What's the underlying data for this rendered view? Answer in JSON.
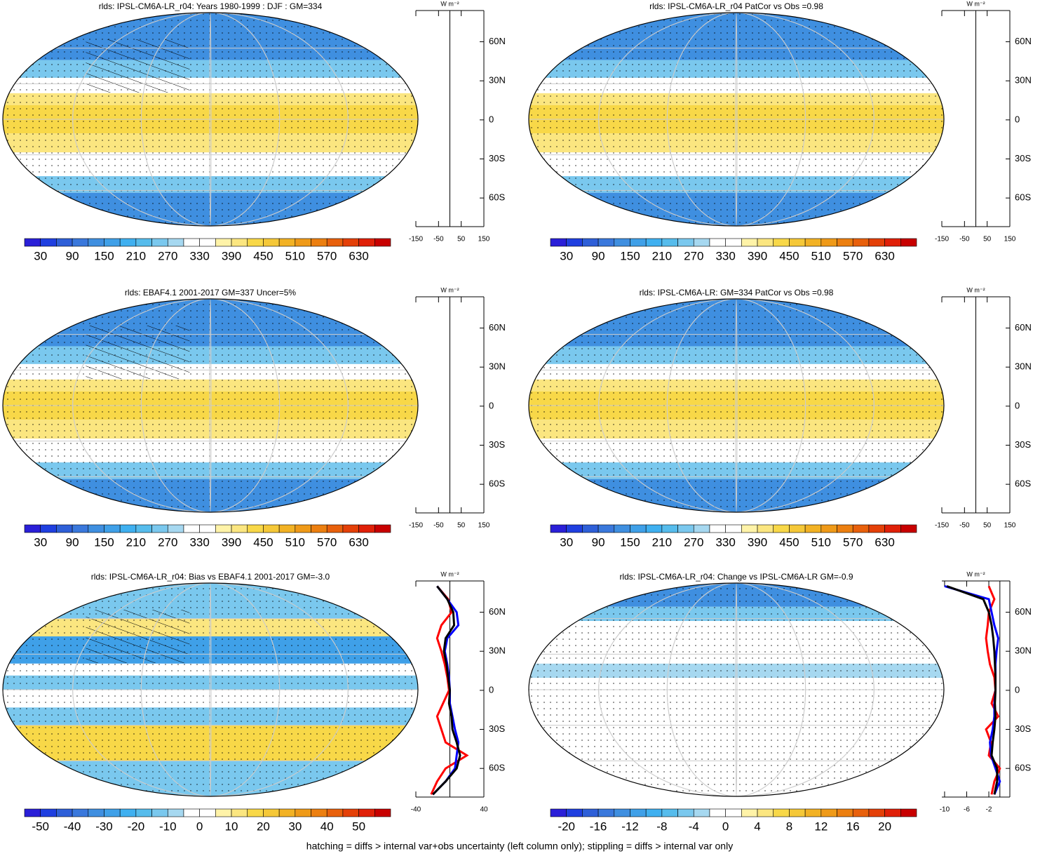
{
  "palette": [
    "#2a1fd8",
    "#1f3fe0",
    "#2e5fd8",
    "#3a78dc",
    "#3f8fe0",
    "#3fa0e8",
    "#3fb0f0",
    "#56bcec",
    "#7ac8ee",
    "#a6d8f0",
    "#ffffff",
    "#ffffff",
    "#fff3a8",
    "#fbe680",
    "#f8d848",
    "#f5c838",
    "#f2b224",
    "#ef9a18",
    "#ec7f10",
    "#e8600c",
    "#e44008",
    "#e02008",
    "#c80000"
  ],
  "footer": "hatching = diffs > internal var+obs uncertainty (left column only); stippling = diffs > internal var only",
  "chart_data": [
    {
      "type": "map",
      "style": "clim",
      "title": "rlds: IPSL-CM6A-LR_r04: Years 1980-1999 : DJF : GM=334",
      "colorbar_ticks": [
        30,
        90,
        150,
        210,
        270,
        330,
        390,
        450,
        510,
        570,
        630
      ],
      "zonal": {
        "unit": "W m⁻²",
        "xlim": [
          -150,
          150
        ],
        "xticks": [
          -150,
          -50,
          50,
          150
        ],
        "ylim": [
          -82,
          84
        ],
        "yticks": [
          {
            "value": 60,
            "label": "60N"
          },
          {
            "value": 30,
            "label": "30N"
          },
          0,
          {
            "value": -30,
            "label": "30S"
          },
          {
            "value": -60,
            "label": "60S"
          }
        ]
      }
    },
    {
      "type": "map",
      "style": "clim",
      "title": "rlds: IPSL-CM6A-LR_r04 PatCor vs Obs =0.98",
      "colorbar_ticks": [
        30,
        90,
        150,
        210,
        270,
        330,
        390,
        450,
        510,
        570,
        630
      ],
      "zonal": {
        "unit": "W m⁻²",
        "xlim": [
          -150,
          150
        ],
        "xticks": [
          -150,
          -50,
          50,
          150
        ],
        "ylim": [
          -82,
          84
        ],
        "yticks": [
          {
            "value": 60,
            "label": "60N"
          },
          {
            "value": 30,
            "label": "30N"
          },
          0,
          {
            "value": -30,
            "label": "30S"
          },
          {
            "value": -60,
            "label": "60S"
          }
        ]
      }
    },
    {
      "type": "map",
      "style": "clim",
      "title": "rlds: EBAF4.1 2001-2017 GM=337 Uncer=5%",
      "colorbar_ticks": [
        30,
        90,
        150,
        210,
        270,
        330,
        390,
        450,
        510,
        570,
        630
      ],
      "zonal": {
        "unit": "W m⁻²",
        "xlim": [
          -150,
          150
        ],
        "xticks": [
          -150,
          -50,
          50,
          150
        ],
        "ylim": [
          -82,
          84
        ],
        "yticks": [
          {
            "value": 60,
            "label": "60N"
          },
          {
            "value": 30,
            "label": "30N"
          },
          0,
          {
            "value": -30,
            "label": "30S"
          },
          {
            "value": -60,
            "label": "60S"
          }
        ]
      }
    },
    {
      "type": "map",
      "style": "clim",
      "title": "rlds: IPSL-CM6A-LR: GM=334 PatCor vs Obs =0.98",
      "colorbar_ticks": [
        30,
        90,
        150,
        210,
        270,
        330,
        390,
        450,
        510,
        570,
        630
      ],
      "zonal": {
        "unit": "W m⁻²",
        "xlim": [
          -150,
          150
        ],
        "xticks": [
          -150,
          -50,
          50,
          150
        ],
        "ylim": [
          -82,
          84
        ],
        "yticks": [
          {
            "value": 60,
            "label": "60N"
          },
          {
            "value": 30,
            "label": "30N"
          },
          0,
          {
            "value": -30,
            "label": "30S"
          },
          {
            "value": -60,
            "label": "60S"
          }
        ]
      }
    },
    {
      "type": "map",
      "style": "bias",
      "title": "rlds: IPSL-CM6A-LR_r04: Bias vs EBAF4.1 2001-2017 GM=-3.0",
      "colorbar_ticks": [
        -50,
        -40,
        -30,
        -20,
        -10,
        0,
        10,
        20,
        30,
        40,
        50
      ],
      "zonal": {
        "unit": "W m⁻²",
        "xlim": [
          -40,
          40
        ],
        "xticks": [
          -40,
          40
        ],
        "ylim": [
          -82,
          84
        ],
        "yticks": [
          {
            "value": 60,
            "label": "60N"
          },
          {
            "value": 30,
            "label": "30N"
          },
          0,
          {
            "value": -30,
            "label": "30S"
          },
          {
            "value": -60,
            "label": "60S"
          }
        ],
        "lat": [
          80,
          70,
          60,
          50,
          40,
          30,
          20,
          10,
          0,
          -10,
          -20,
          -30,
          -40,
          -50,
          -60,
          -70,
          -80
        ],
        "series": [
          {
            "color": "#ff0000",
            "values": [
              -15,
              -2,
              2,
              -10,
              -15,
              -10,
              -6,
              -3,
              -1,
              -8,
              -15,
              -10,
              -5,
              20,
              -5,
              -15,
              -22
            ]
          },
          {
            "color": "#0000ff",
            "values": [
              -15,
              -3,
              8,
              10,
              -3,
              -6,
              -3,
              -1,
              0,
              0,
              3,
              6,
              10,
              8,
              6,
              -5,
              -20
            ]
          },
          {
            "color": "#000000",
            "values": [
              -15,
              -3,
              4,
              5,
              -5,
              -7,
              -4,
              -2,
              0,
              -1,
              2,
              3,
              8,
              12,
              8,
              -5,
              -20
            ]
          }
        ]
      }
    },
    {
      "type": "map",
      "style": "change",
      "title": "rlds: IPSL-CM6A-LR_r04: Change vs IPSL-CM6A-LR GM=-0.9",
      "colorbar_ticks": [
        -20,
        -16,
        -12,
        -8,
        -4,
        0,
        4,
        8,
        12,
        16,
        20
      ],
      "zonal": {
        "unit": "W m⁻²",
        "xlim": [
          -10.5,
          1.8
        ],
        "xticks": [
          -10,
          -6,
          -2
        ],
        "ylim": [
          -82,
          84
        ],
        "yticks": [
          {
            "value": 60,
            "label": "60N"
          },
          {
            "value": 30,
            "label": "30N"
          },
          0,
          {
            "value": -30,
            "label": "30S"
          },
          {
            "value": -60,
            "label": "60S"
          }
        ],
        "lat": [
          80,
          70,
          60,
          50,
          40,
          30,
          20,
          10,
          0,
          -10,
          -20,
          -30,
          -40,
          -50,
          -60,
          -70,
          -80
        ],
        "series": [
          {
            "color": "#ff0000",
            "values": [
              -2,
              -1,
              -2,
              -2.2,
              -2.5,
              -2.2,
              -1.8,
              -1,
              -0.8,
              -1.5,
              -0.3,
              -2.5,
              -1.6,
              -2,
              0,
              -1,
              -1.5
            ]
          },
          {
            "color": "#0000ff",
            "values": [
              -10,
              -2,
              -1.5,
              -1,
              -0.3,
              -0.6,
              -0.8,
              -0.8,
              -0.8,
              -1,
              -1,
              -1.3,
              -1.8,
              -1.6,
              -0.8,
              0,
              -1
            ]
          },
          {
            "color": "#000000",
            "values": [
              -9.6,
              -3,
              -2,
              -1.5,
              -1.2,
              -1,
              -0.9,
              -0.8,
              -0.8,
              -0.9,
              -0.8,
              -1,
              -1.3,
              -1.5,
              -0.5,
              -0.5,
              -1
            ]
          }
        ]
      }
    }
  ]
}
